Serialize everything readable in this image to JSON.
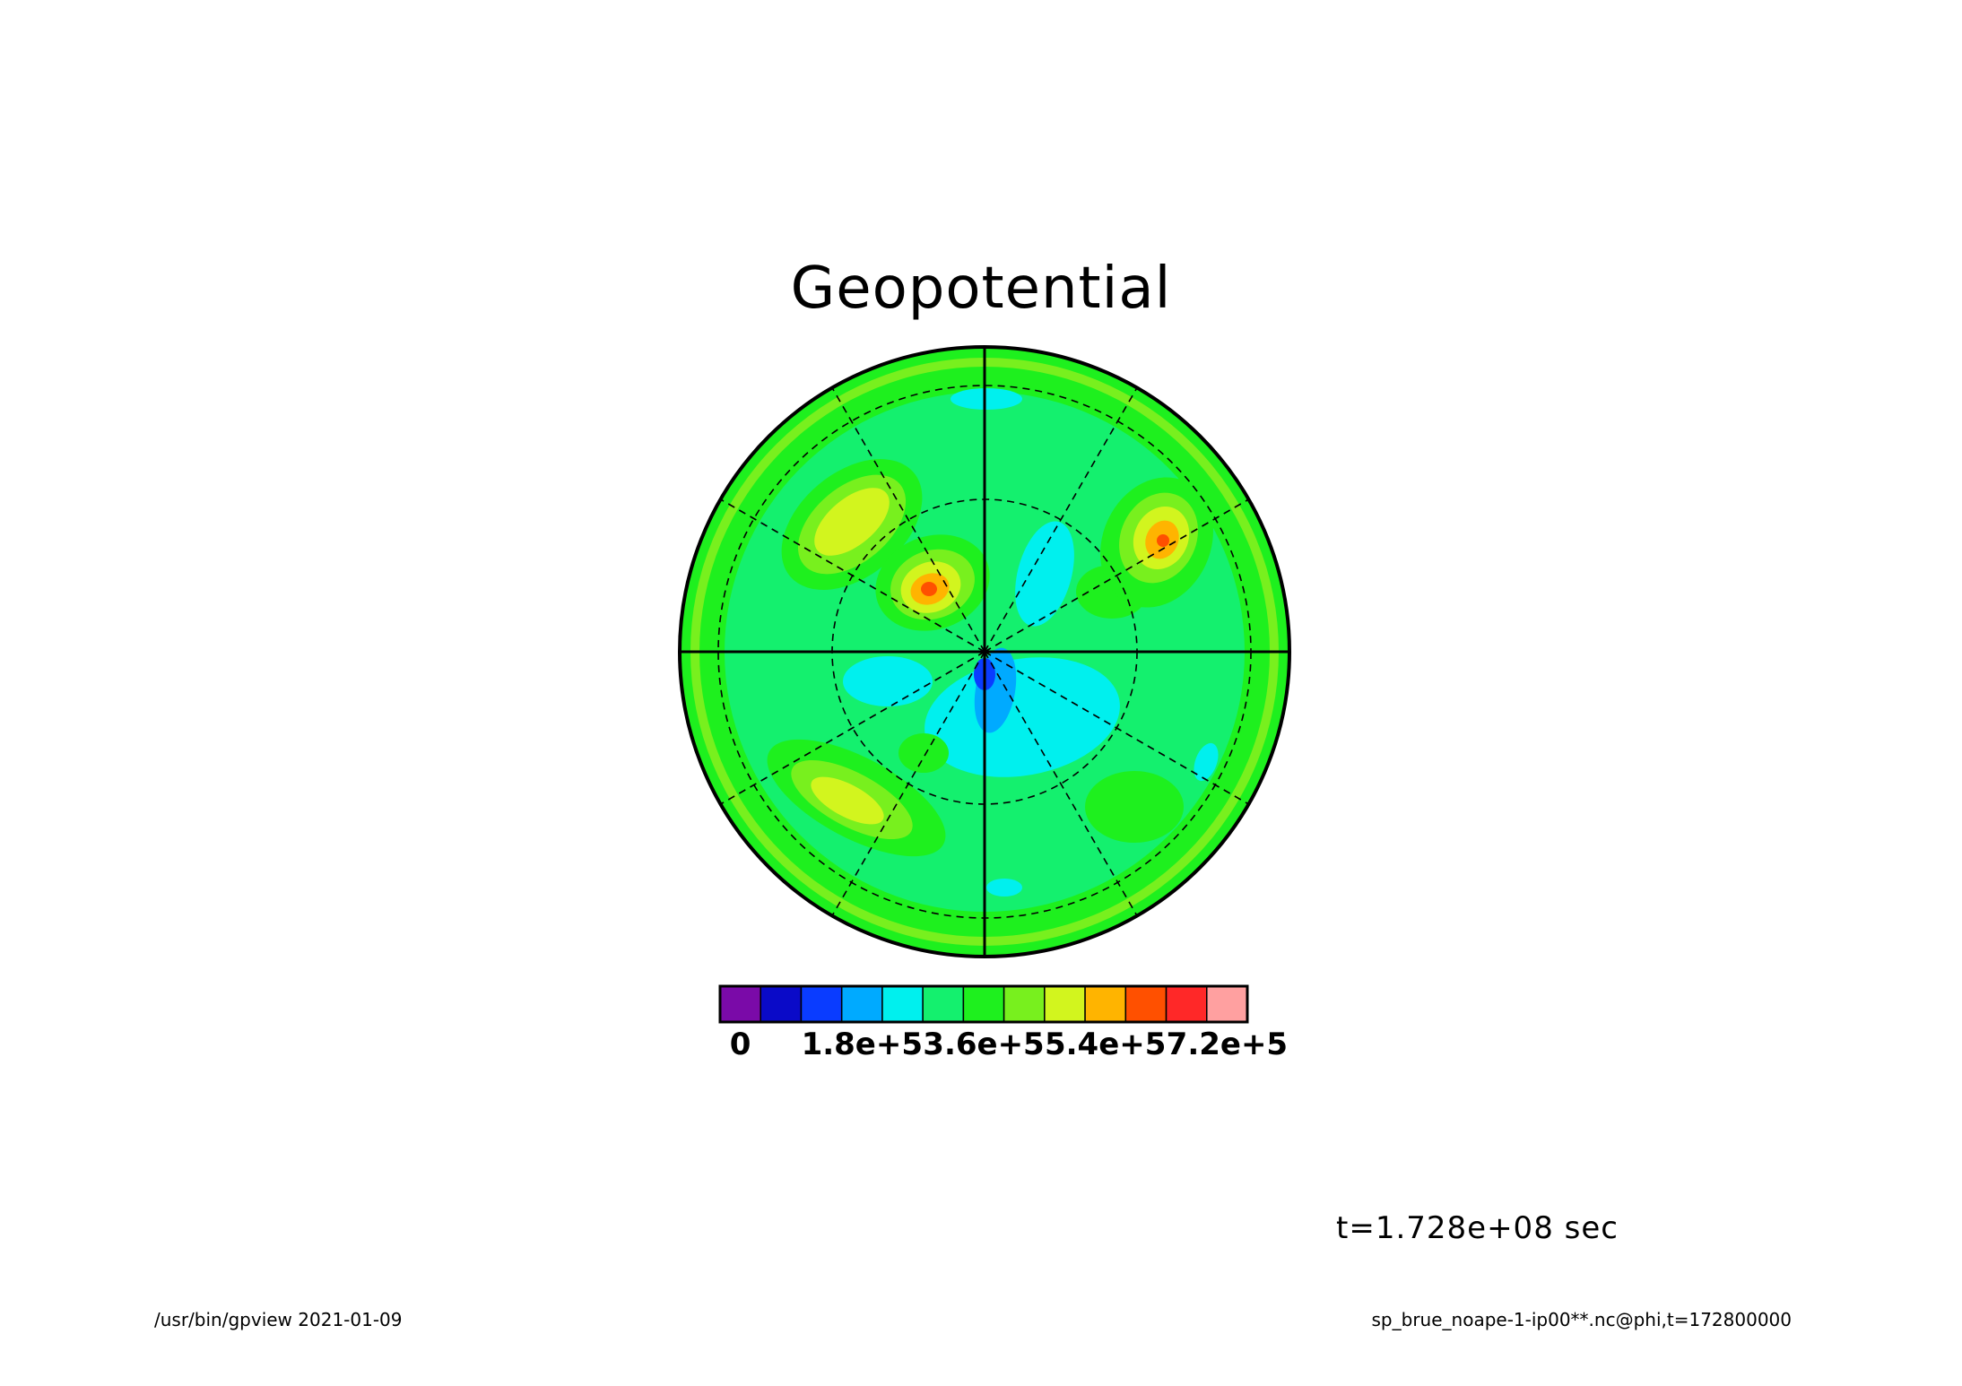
{
  "title": "Geopotential",
  "time_label": "t=1.728e+08 sec",
  "footer_left": "/usr/bin/gpview  2021-01-09",
  "footer_right": "sp_brue_noape-1-ip00**.nc@phi,t=172800000",
  "colors": {
    "background": "#ffffff",
    "field_base": "#14f06e",
    "outer_ring": "#1ef032"
  },
  "chart_data": {
    "type": "heatmap",
    "projection": "polar-stereographic",
    "title": "Geopotential",
    "variable": "phi",
    "time": "t=172800000",
    "colorbar": {
      "levels": [
        {
          "color": "#7a0aa8"
        },
        {
          "color": "#0a0ac8"
        },
        {
          "color": "#0a3cff"
        },
        {
          "color": "#00aaff"
        },
        {
          "color": "#00f0ee"
        },
        {
          "color": "#14f06e"
        },
        {
          "color": "#1ef01e"
        },
        {
          "color": "#78f01e"
        },
        {
          "color": "#d2f51e"
        },
        {
          "color": "#ffb400"
        },
        {
          "color": "#ff5000"
        },
        {
          "color": "#ff2828"
        },
        {
          "color": "#ffa0a0"
        }
      ],
      "tick_labels": [
        "0",
        "1.8e+5",
        "3.6e+5",
        "5.4e+5",
        "7.2e+5"
      ],
      "tick_values": [
        0,
        180000,
        360000,
        540000,
        720000
      ]
    },
    "features": [
      {
        "kind": "maximum",
        "value_range": [
          600000,
          660000
        ],
        "quadrant": "upper-left-inner"
      },
      {
        "kind": "maximum",
        "value_range": [
          600000,
          660000
        ],
        "quadrant": "upper-right"
      },
      {
        "kind": "maximum",
        "value_range": [
          480000,
          540000
        ],
        "quadrant": "upper-left-outer"
      },
      {
        "kind": "maximum",
        "value_range": [
          480000,
          540000
        ],
        "quadrant": "lower-left"
      },
      {
        "kind": "minimum",
        "value_range": [
          60000,
          120000
        ],
        "quadrant": "center"
      }
    ],
    "grid": true
  }
}
